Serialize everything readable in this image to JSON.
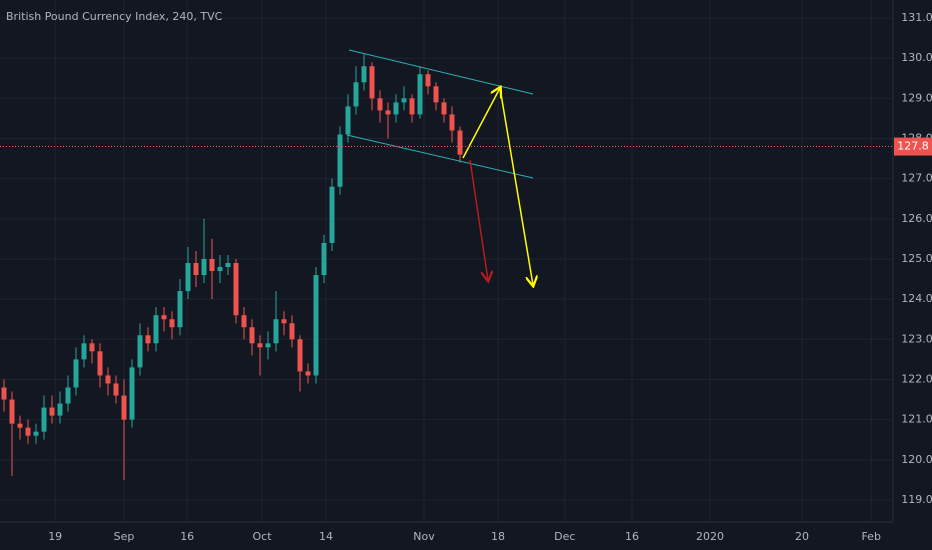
{
  "chart_data": {
    "type": "candlestick",
    "title": "British Pound Currency Index, 240, TVC",
    "up_color": "#26a69a",
    "down_color": "#ef5350",
    "x": [
      0.5,
      1.5,
      2.5,
      3.5,
      4.5,
      5.5,
      6.5,
      7.5,
      8.5,
      9.5,
      10.5,
      11.5,
      12.5,
      13.5,
      14.5,
      15.5,
      16.5,
      17.5,
      18.5,
      19.5,
      20.5,
      21.5,
      22.5,
      23.5,
      24.5,
      25.5,
      26.5,
      27.5,
      28.5,
      29.5,
      30.5,
      31.5,
      32.5,
      33.5,
      34.5,
      35.5,
      36.5,
      37.5,
      38.5,
      39.5,
      40.5,
      41.5,
      42.5,
      43.5,
      44.5,
      45.5,
      46.5,
      47.5,
      48.5,
      49.5,
      50.5,
      51.5,
      52.5,
      53.5,
      54.5,
      55.5,
      56.5,
      57.5
    ],
    "open": [
      121.8,
      121.5,
      120.9,
      120.8,
      120.6,
      120.7,
      121.3,
      121.1,
      121.4,
      121.8,
      122.5,
      122.9,
      122.7,
      122.1,
      121.9,
      121.6,
      121.0,
      122.3,
      123.1,
      122.9,
      123.6,
      123.5,
      123.3,
      124.2,
      124.9,
      124.6,
      125.0,
      124.7,
      124.8,
      124.9,
      123.6,
      123.3,
      122.9,
      122.8,
      122.9,
      123.5,
      123.4,
      123.0,
      122.2,
      122.1,
      124.6,
      125.4,
      126.8,
      128.1,
      128.8,
      129.4,
      129.8,
      129.0,
      128.7,
      128.6,
      128.9,
      129.0,
      128.6,
      129.6,
      129.3,
      128.9,
      128.6,
      128.2
    ],
    "high": [
      122.0,
      121.7,
      121.1,
      121.0,
      120.9,
      121.6,
      121.6,
      121.7,
      122.1,
      122.8,
      123.1,
      123.0,
      122.9,
      122.3,
      122.1,
      122.0,
      122.5,
      123.4,
      123.3,
      123.8,
      123.8,
      123.7,
      124.5,
      125.3,
      125.2,
      126.0,
      125.5,
      125.1,
      125.1,
      125.0,
      123.8,
      123.5,
      123.1,
      123.2,
      124.2,
      123.7,
      123.6,
      123.1,
      122.4,
      124.8,
      125.6,
      127.0,
      128.3,
      129.1,
      129.8,
      130.1,
      129.9,
      129.2,
      128.9,
      129.1,
      129.3,
      129.1,
      129.8,
      129.7,
      129.4,
      129.0,
      128.8,
      128.3
    ],
    "low": [
      121.2,
      119.6,
      120.5,
      120.4,
      120.4,
      120.5,
      120.9,
      120.9,
      121.2,
      121.6,
      122.3,
      122.4,
      121.8,
      121.6,
      121.4,
      119.5,
      120.8,
      122.1,
      122.7,
      122.7,
      123.2,
      123.0,
      123.1,
      124.0,
      124.3,
      124.4,
      124.0,
      124.4,
      124.6,
      123.4,
      123.0,
      122.6,
      122.1,
      122.5,
      122.7,
      123.1,
      122.8,
      121.7,
      121.9,
      121.9,
      124.4,
      125.2,
      126.6,
      127.9,
      128.6,
      129.2,
      128.7,
      128.4,
      128.0,
      128.4,
      128.7,
      128.4,
      128.5,
      129.1,
      128.7,
      128.4,
      127.9,
      127.4
    ],
    "close": [
      121.5,
      120.9,
      120.8,
      120.6,
      120.7,
      121.3,
      121.1,
      121.4,
      121.8,
      122.5,
      122.9,
      122.7,
      122.1,
      121.9,
      121.6,
      121.0,
      122.3,
      123.1,
      122.9,
      123.6,
      123.5,
      123.3,
      124.2,
      124.9,
      124.6,
      125.0,
      124.7,
      124.8,
      124.9,
      123.6,
      123.3,
      122.9,
      122.8,
      122.9,
      123.5,
      123.4,
      123.0,
      122.2,
      122.1,
      124.6,
      125.4,
      126.8,
      128.1,
      128.8,
      129.4,
      129.8,
      129.0,
      128.7,
      128.6,
      128.9,
      129.0,
      128.6,
      129.6,
      129.3,
      128.9,
      128.6,
      128.2,
      127.6
    ],
    "last_price": 127.8,
    "last_price_color": "#ef5350",
    "xlim": [
      0,
      111.625
    ],
    "xticks": [
      {
        "value": 6.9,
        "label": "19"
      },
      {
        "value": 15.5,
        "label": "Sep"
      },
      {
        "value": 23.4,
        "label": "16"
      },
      {
        "value": 32.75,
        "label": "Oct"
      },
      {
        "value": 40.75,
        "label": "14"
      },
      {
        "value": 53,
        "label": "Nov"
      },
      {
        "value": 62.25,
        "label": "18"
      },
      {
        "value": 70.6,
        "label": "Dec"
      },
      {
        "value": 79,
        "label": "16"
      },
      {
        "value": 88.75,
        "label": "2020"
      },
      {
        "value": 100.25,
        "label": "20"
      },
      {
        "value": 108.9,
        "label": "Feb"
      }
    ],
    "ylim": [
      118.45,
      131.45
    ],
    "yticks": [
      {
        "value": 119,
        "label": "119.0"
      },
      {
        "value": 120,
        "label": "120.0"
      },
      {
        "value": 121,
        "label": "121.0"
      },
      {
        "value": 122,
        "label": "122.0"
      },
      {
        "value": 123,
        "label": "123.0"
      },
      {
        "value": 124,
        "label": "124.0"
      },
      {
        "value": 125,
        "label": "125.0"
      },
      {
        "value": 126,
        "label": "126.0"
      },
      {
        "value": 127,
        "label": "127.0"
      },
      {
        "value": 128,
        "label": "128.0"
      },
      {
        "value": 129,
        "label": "129.0"
      },
      {
        "value": 130,
        "label": "130.0"
      },
      {
        "value": 131,
        "label": "131.0"
      }
    ],
    "grid": true
  }
}
